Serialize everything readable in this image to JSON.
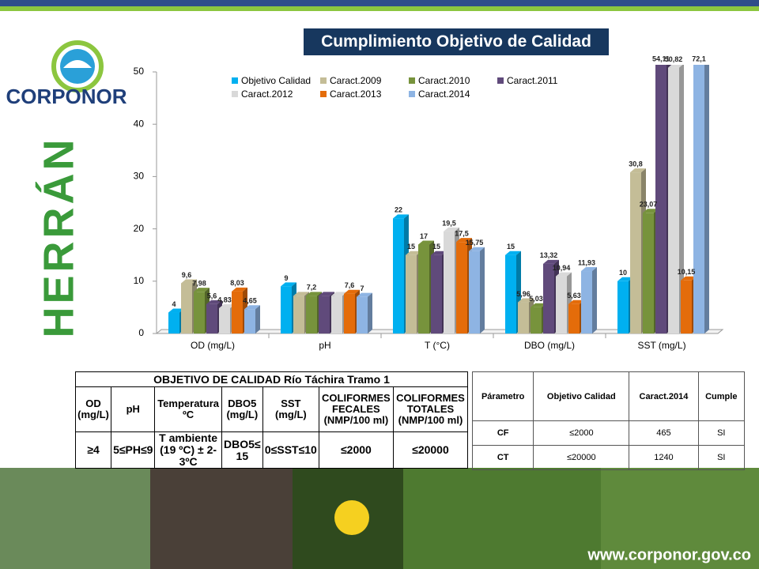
{
  "chart_data": {
    "type": "bar",
    "title": "Cumplimiento Objetivo de Calidad",
    "categories": [
      "OD (mg/L)",
      "pH",
      "T (°C)",
      "DBO (mg/L)",
      "SST (mg/L)"
    ],
    "ylim": [
      0,
      50
    ],
    "yticks": [
      0,
      10,
      20,
      30,
      40,
      50
    ],
    "grid": false,
    "series": [
      {
        "name": "Objetivo Calidad",
        "color": "#00b0f0",
        "values": [
          4,
          9,
          22,
          15,
          10
        ],
        "value_labels": [
          "4",
          "9",
          "22",
          "15",
          "10"
        ]
      },
      {
        "name": "Caract.2009",
        "color": "#c4bd97",
        "values": [
          9.6,
          7.2,
          15,
          5.96,
          30.8
        ],
        "value_labels": [
          "9,6",
          null,
          "15",
          "5,96",
          "30,8"
        ]
      },
      {
        "name": "Caract.2010",
        "color": "#77933c",
        "values": [
          7.98,
          7.2,
          17,
          5.03,
          23.07
        ],
        "value_labels": [
          "7,98",
          "7,2",
          "17",
          "5,03",
          "23,07"
        ]
      },
      {
        "name": "Caract.2011",
        "color": "#604a7b",
        "values": [
          5.6,
          7.2,
          15,
          13.32,
          54.11
        ],
        "value_labels": [
          "5,6",
          null,
          "15",
          "13,32",
          "54,11"
        ]
      },
      {
        "name": "Caract.2012",
        "color": "#d9d9d9",
        "values": [
          4.83,
          7.2,
          19.5,
          10.94,
          50.82
        ],
        "value_labels": [
          "4,83",
          null,
          "19,5",
          "10,94",
          "50,82"
        ]
      },
      {
        "name": "Caract.2013",
        "color": "#e46c0a",
        "values": [
          8.03,
          7.6,
          17.5,
          5.63,
          10.15
        ],
        "value_labels": [
          "8,03",
          "7,6",
          "17,5",
          "5,63",
          "10,15"
        ]
      },
      {
        "name": "Caract.2014",
        "color": "#8eb4e3",
        "values": [
          4.65,
          7,
          15.75,
          11.93,
          72.1
        ],
        "value_labels": [
          "4,65",
          "7",
          "15,75",
          "11,93",
          "72,1"
        ]
      }
    ]
  },
  "slide": {
    "logo": "CORPONOR",
    "side_title": "HERRÁN",
    "footer_url": "www.corponor.gov.co",
    "table1": {
      "title": "OBJETIVO DE CALIDAD Río Táchira Tramo 1",
      "header": [
        "OD (mg/L)",
        "pH",
        "Temperatura ºC",
        "DBO5 (mg/L)",
        "SST (mg/L)",
        "COLIFORMES FECALES (NMP/100 ml)",
        "COLIFORMES TOTALES (NMP/100 ml)"
      ],
      "row": [
        "≥4",
        "5≤PH≤9",
        "T ambiente (19 ºC) ± 2-3ºC",
        "DBO5≤ 15",
        "0≤SST≤10",
        "≤2000",
        "≤20000"
      ]
    },
    "table2": {
      "header": [
        "Párametro",
        "Objetivo Calidad",
        "Caract.2014",
        "Cumple"
      ],
      "rows": [
        [
          "CF",
          "≤2000",
          "465",
          "SI"
        ],
        [
          "CT",
          "≤20000",
          "1240",
          "SI"
        ]
      ]
    }
  }
}
